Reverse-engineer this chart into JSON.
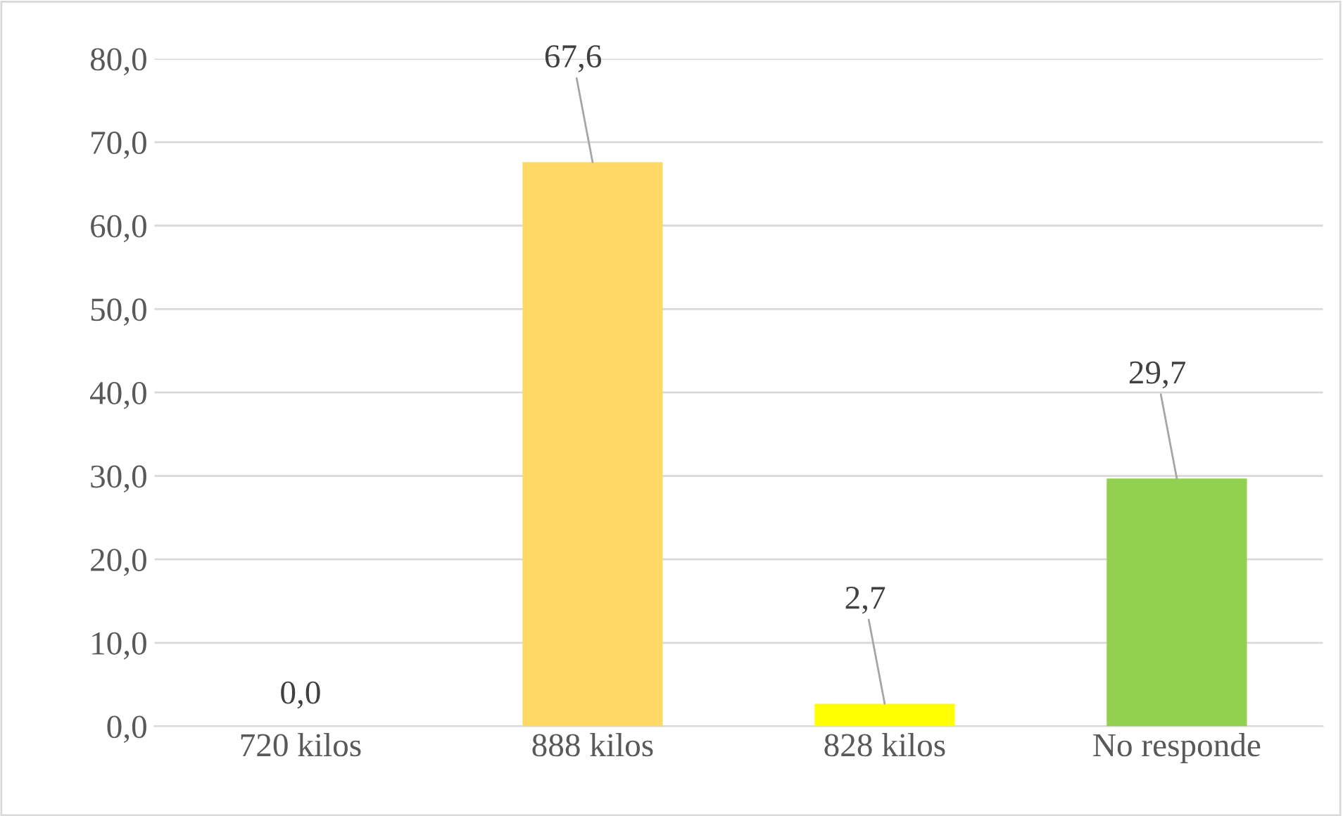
{
  "chart_data": {
    "type": "bar",
    "categories": [
      "720 kilos",
      "888 kilos",
      "828 kilos",
      "No responde"
    ],
    "values": [
      0.0,
      67.6,
      2.7,
      29.7
    ],
    "colors": [
      "#ffd966",
      "#ffd966",
      "#ffff00",
      "#92d050"
    ],
    "value_labels": [
      "0,0",
      "67,6",
      "2,7",
      "29,7"
    ],
    "ylim": [
      0,
      80
    ],
    "yticks": [
      {
        "value": 0,
        "label": "0,0"
      },
      {
        "value": 10,
        "label": "10,0"
      },
      {
        "value": 20,
        "label": "20,0"
      },
      {
        "value": 30,
        "label": "30,0"
      },
      {
        "value": 40,
        "label": "40,0"
      },
      {
        "value": 50,
        "label": "50,0"
      },
      {
        "value": 60,
        "label": "60,0"
      },
      {
        "value": 70,
        "label": "70,0"
      },
      {
        "value": 80,
        "label": "80,0"
      }
    ],
    "grid": "y",
    "legend": false
  }
}
